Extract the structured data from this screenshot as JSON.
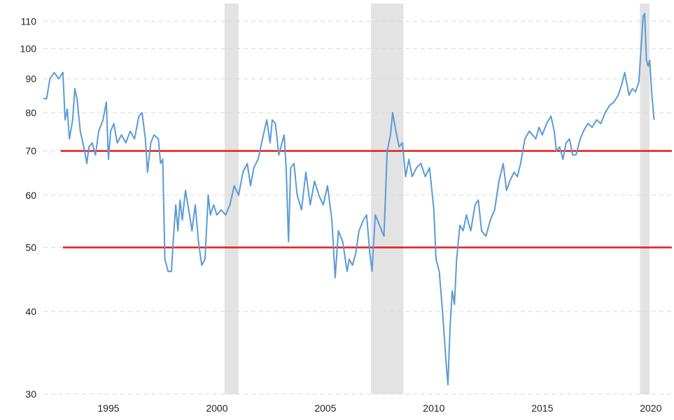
{
  "chart_data": {
    "type": "line",
    "title": "",
    "xlabel": "",
    "ylabel": "",
    "y_scale": "log",
    "xlim": [
      1992.0,
      2020.2
    ],
    "ylim": [
      30,
      117
    ],
    "x_ticks": [
      {
        "value": 1995,
        "label": "1995"
      },
      {
        "value": 2000,
        "label": "2000"
      },
      {
        "value": 2005,
        "label": "2005"
      },
      {
        "value": 2010,
        "label": "2010"
      },
      {
        "value": 2015,
        "label": "2015"
      },
      {
        "value": 2020,
        "label": "2020"
      }
    ],
    "y_ticks": [
      {
        "value": 30,
        "label": "30"
      },
      {
        "value": 40,
        "label": "40"
      },
      {
        "value": 50,
        "label": "50"
      },
      {
        "value": 60,
        "label": "60"
      },
      {
        "value": 70,
        "label": "70"
      },
      {
        "value": 80,
        "label": "80"
      },
      {
        "value": 90,
        "label": "90"
      },
      {
        "value": 100,
        "label": "100"
      },
      {
        "value": 110,
        "label": "110"
      }
    ],
    "grid": {
      "horizontal": true,
      "vertical": false,
      "style": "dashed"
    },
    "recessions": [
      {
        "start": 2000.35,
        "end": 2001.0
      },
      {
        "start": 2007.1,
        "end": 2008.6
      },
      {
        "start": 2019.5,
        "end": 2019.95
      }
    ],
    "reference_lines": [
      {
        "value": 70,
        "x_start": 1992.8,
        "x_end": 2020.2,
        "color": "#e31b1b"
      },
      {
        "value": 50,
        "x_start": 1992.9,
        "x_end": 2020.2,
        "color": "#e31b1b"
      }
    ],
    "series": [
      {
        "color": "#5b9bd5",
        "points": [
          [
            1992.0,
            84
          ],
          [
            1992.15,
            84
          ],
          [
            1992.3,
            90
          ],
          [
            1992.5,
            92
          ],
          [
            1992.7,
            90
          ],
          [
            1992.9,
            92
          ],
          [
            1993.0,
            78
          ],
          [
            1993.1,
            81
          ],
          [
            1993.2,
            73
          ],
          [
            1993.35,
            78
          ],
          [
            1993.45,
            87
          ],
          [
            1993.55,
            84
          ],
          [
            1993.7,
            75
          ],
          [
            1993.9,
            70
          ],
          [
            1994.0,
            67
          ],
          [
            1994.1,
            71
          ],
          [
            1994.25,
            72
          ],
          [
            1994.4,
            69
          ],
          [
            1994.55,
            75
          ],
          [
            1994.75,
            78
          ],
          [
            1994.9,
            83
          ],
          [
            1995.0,
            68
          ],
          [
            1995.1,
            75
          ],
          [
            1995.25,
            77
          ],
          [
            1995.4,
            72
          ],
          [
            1995.6,
            74
          ],
          [
            1995.8,
            72
          ],
          [
            1996.0,
            75
          ],
          [
            1996.2,
            73
          ],
          [
            1996.4,
            79
          ],
          [
            1996.55,
            80
          ],
          [
            1996.7,
            73
          ],
          [
            1996.8,
            65
          ],
          [
            1996.95,
            72
          ],
          [
            1997.1,
            74
          ],
          [
            1997.3,
            73
          ],
          [
            1997.4,
            67
          ],
          [
            1997.5,
            68
          ],
          [
            1997.6,
            48
          ],
          [
            1997.75,
            46
          ],
          [
            1997.9,
            46
          ],
          [
            1998.0,
            52
          ],
          [
            1998.1,
            58
          ],
          [
            1998.2,
            53
          ],
          [
            1998.3,
            59
          ],
          [
            1998.4,
            55
          ],
          [
            1998.55,
            61
          ],
          [
            1998.7,
            57
          ],
          [
            1998.85,
            53
          ],
          [
            1999.0,
            58
          ],
          [
            1999.15,
            51
          ],
          [
            1999.3,
            47
          ],
          [
            1999.45,
            48
          ],
          [
            1999.6,
            60
          ],
          [
            1999.7,
            56
          ],
          [
            1999.85,
            58
          ],
          [
            2000.0,
            56
          ],
          [
            2000.2,
            57
          ],
          [
            2000.4,
            56
          ],
          [
            2000.6,
            58
          ],
          [
            2000.8,
            62
          ],
          [
            2001.0,
            60
          ],
          [
            2001.2,
            65
          ],
          [
            2001.4,
            67
          ],
          [
            2001.55,
            62
          ],
          [
            2001.7,
            66
          ],
          [
            2001.9,
            68
          ],
          [
            2002.1,
            73
          ],
          [
            2002.3,
            78
          ],
          [
            2002.45,
            72
          ],
          [
            2002.55,
            78
          ],
          [
            2002.7,
            77
          ],
          [
            2002.85,
            69
          ],
          [
            2003.0,
            72
          ],
          [
            2003.1,
            74
          ],
          [
            2003.2,
            65
          ],
          [
            2003.3,
            51
          ],
          [
            2003.4,
            66
          ],
          [
            2003.55,
            67
          ],
          [
            2003.7,
            60
          ],
          [
            2003.9,
            57
          ],
          [
            2004.1,
            65
          ],
          [
            2004.3,
            58
          ],
          [
            2004.5,
            63
          ],
          [
            2004.7,
            60
          ],
          [
            2004.9,
            58
          ],
          [
            2005.1,
            62
          ],
          [
            2005.3,
            55
          ],
          [
            2005.45,
            45
          ],
          [
            2005.6,
            53
          ],
          [
            2005.8,
            51
          ],
          [
            2006.0,
            46
          ],
          [
            2006.1,
            48
          ],
          [
            2006.25,
            47
          ],
          [
            2006.4,
            49
          ],
          [
            2006.55,
            53
          ],
          [
            2006.75,
            55
          ],
          [
            2006.9,
            56
          ],
          [
            2007.05,
            49
          ],
          [
            2007.15,
            46
          ],
          [
            2007.3,
            56
          ],
          [
            2007.5,
            54
          ],
          [
            2007.7,
            52
          ],
          [
            2007.85,
            70
          ],
          [
            2008.0,
            74
          ],
          [
            2008.1,
            80
          ],
          [
            2008.25,
            75
          ],
          [
            2008.4,
            71
          ],
          [
            2008.55,
            72
          ],
          [
            2008.7,
            64
          ],
          [
            2008.85,
            68
          ],
          [
            2009.0,
            64
          ],
          [
            2009.2,
            66
          ],
          [
            2009.4,
            67
          ],
          [
            2009.6,
            64
          ],
          [
            2009.8,
            66
          ],
          [
            2010.0,
            57
          ],
          [
            2010.1,
            48
          ],
          [
            2010.25,
            46
          ],
          [
            2010.4,
            40
          ],
          [
            2010.55,
            34
          ],
          [
            2010.65,
            31
          ],
          [
            2010.75,
            38
          ],
          [
            2010.85,
            43
          ],
          [
            2010.95,
            41
          ],
          [
            2011.05,
            48
          ],
          [
            2011.2,
            54
          ],
          [
            2011.35,
            53
          ],
          [
            2011.5,
            56
          ],
          [
            2011.7,
            53
          ],
          [
            2011.9,
            58
          ],
          [
            2012.05,
            59
          ],
          [
            2012.2,
            53
          ],
          [
            2012.4,
            52
          ],
          [
            2012.6,
            55
          ],
          [
            2012.8,
            57
          ],
          [
            2013.0,
            63
          ],
          [
            2013.2,
            67
          ],
          [
            2013.35,
            61
          ],
          [
            2013.5,
            63
          ],
          [
            2013.7,
            65
          ],
          [
            2013.85,
            64
          ],
          [
            2014.0,
            67
          ],
          [
            2014.2,
            73
          ],
          [
            2014.4,
            75
          ],
          [
            2014.55,
            74
          ],
          [
            2014.7,
            73
          ],
          [
            2014.85,
            76
          ],
          [
            2015.0,
            74
          ],
          [
            2015.2,
            77
          ],
          [
            2015.4,
            79
          ],
          [
            2015.55,
            75
          ],
          [
            2015.65,
            70
          ],
          [
            2015.8,
            71
          ],
          [
            2015.95,
            68
          ],
          [
            2016.1,
            72
          ],
          [
            2016.25,
            73
          ],
          [
            2016.4,
            69
          ],
          [
            2016.55,
            69
          ],
          [
            2016.75,
            73
          ],
          [
            2016.9,
            75
          ],
          [
            2017.1,
            77
          ],
          [
            2017.3,
            76
          ],
          [
            2017.5,
            78
          ],
          [
            2017.7,
            77
          ],
          [
            2017.9,
            80
          ],
          [
            2018.1,
            82
          ],
          [
            2018.3,
            83
          ],
          [
            2018.5,
            85
          ],
          [
            2018.65,
            88
          ],
          [
            2018.8,
            92
          ],
          [
            2019.0,
            85
          ],
          [
            2019.15,
            87
          ],
          [
            2019.3,
            86
          ],
          [
            2019.45,
            89
          ],
          [
            2019.55,
            100
          ],
          [
            2019.65,
            112
          ],
          [
            2019.72,
            113
          ],
          [
            2019.8,
            96
          ],
          [
            2019.88,
            94
          ],
          [
            2019.95,
            96
          ],
          [
            2020.05,
            85
          ],
          [
            2020.15,
            78
          ]
        ]
      }
    ]
  }
}
